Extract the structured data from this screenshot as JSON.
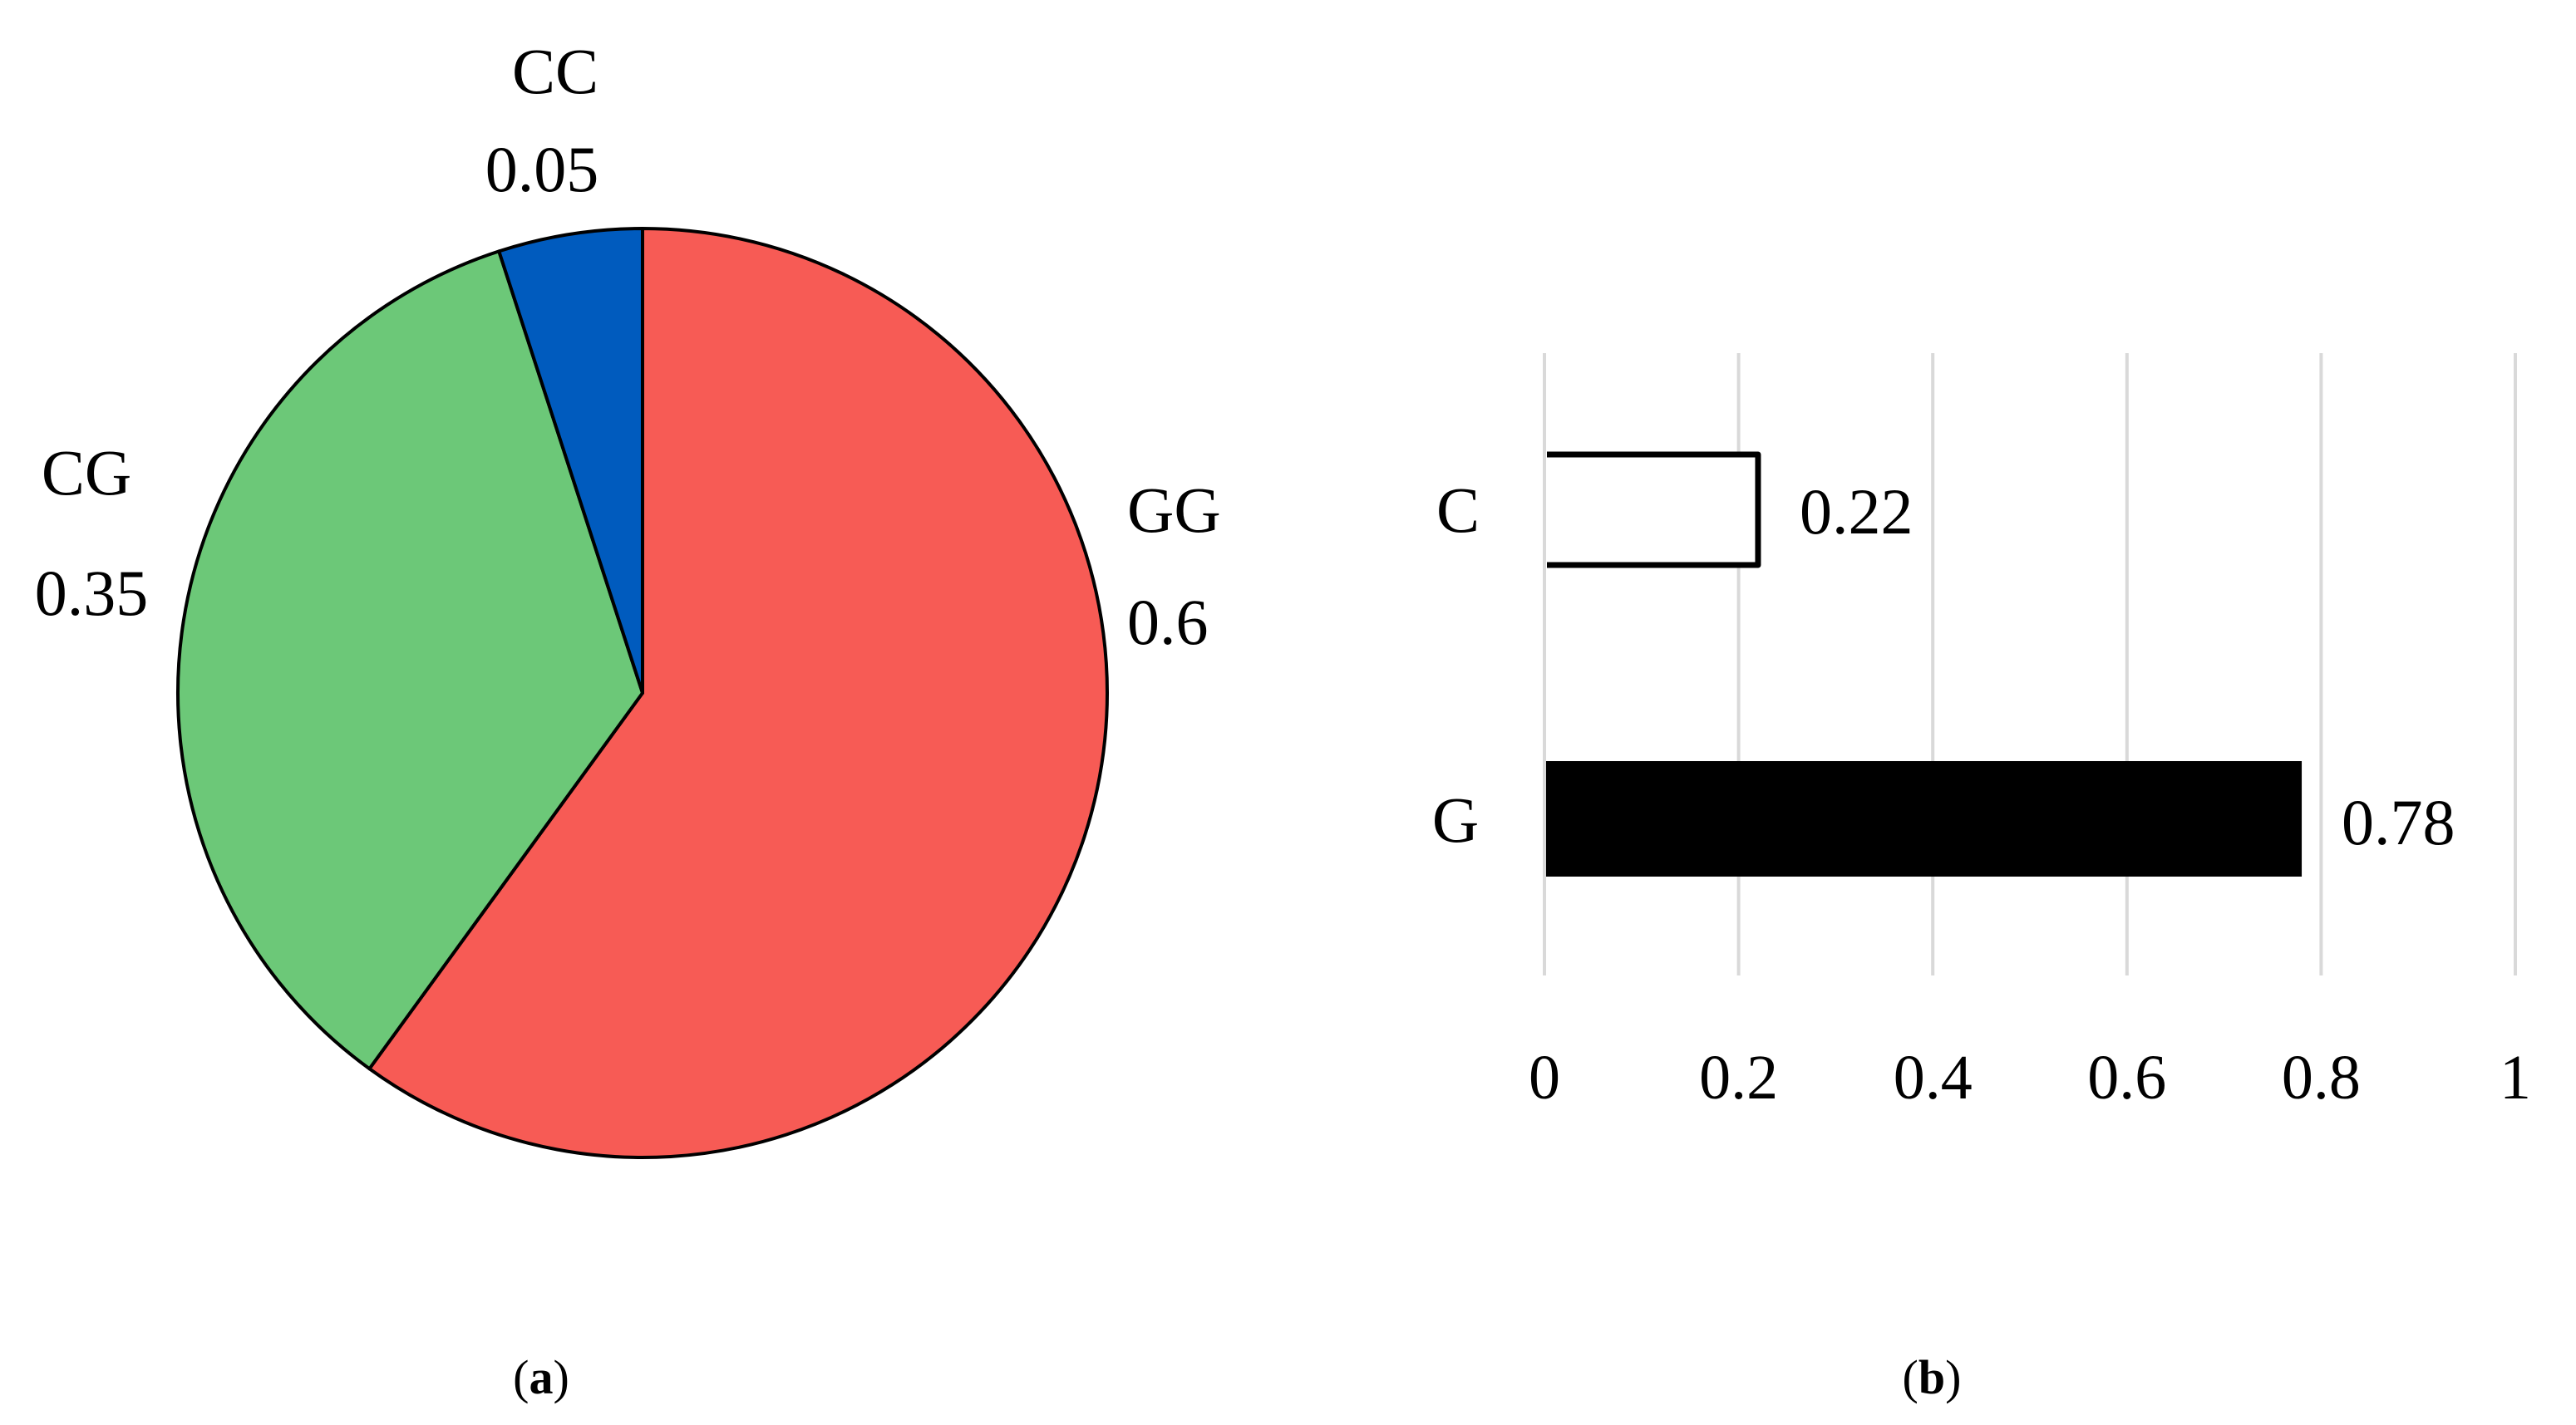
{
  "figure": {
    "panel_a": {
      "caption_open": "(",
      "caption_letter": "a",
      "caption_close": ")"
    },
    "panel_b": {
      "caption_open": "(",
      "caption_letter": "b",
      "caption_close": ")"
    }
  },
  "chart_data": [
    {
      "type": "pie",
      "panel": "a",
      "title": "",
      "start_angle_deg": 0,
      "direction": "clockwise",
      "slices": [
        {
          "label": "GG",
          "value": 0.6,
          "value_label": "0.6",
          "color": "#f75b55"
        },
        {
          "label": "CG",
          "value": 0.35,
          "value_label": "0.35",
          "color": "#6cc878"
        },
        {
          "label": "CC",
          "value": 0.05,
          "value_label": "0.05",
          "color": "#005bbe"
        }
      ],
      "labels": [
        "GG",
        "CG",
        "CC"
      ],
      "values": [
        0.6,
        0.35,
        0.05
      ],
      "legend": "none",
      "data_labels": "category and value, outside slices"
    },
    {
      "type": "bar",
      "orientation": "horizontal",
      "panel": "b",
      "title": "",
      "xlabel": "",
      "ylabel": "",
      "categories": [
        "C",
        "G"
      ],
      "values": [
        0.22,
        0.78
      ],
      "value_labels": [
        "0.22",
        "0.78"
      ],
      "bar_styles": [
        {
          "category": "C",
          "fill": "#ffffff",
          "stroke": "#000000"
        },
        {
          "category": "G",
          "fill": "#000000",
          "stroke": "#000000"
        }
      ],
      "xlim": [
        0,
        1
      ],
      "x_ticks": [
        0,
        0.2,
        0.4,
        0.6,
        0.8,
        1
      ],
      "x_tick_labels": [
        "0",
        "0.2",
        "0.4",
        "0.6",
        "0.8",
        "1"
      ],
      "grid": "vertical gridlines, light gray",
      "grid_color": "#d9d9d9",
      "legend": "none"
    }
  ]
}
